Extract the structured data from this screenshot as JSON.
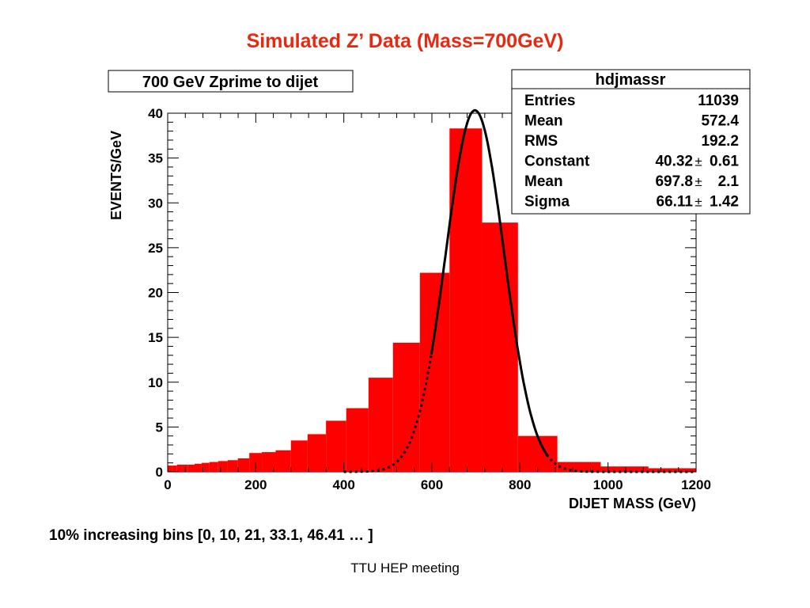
{
  "slide": {
    "title": "Simulated Z’ Data (Mass=700GeV)",
    "note": "10% increasing bins  [0, 10, 21, 33.1, 46.41 … ]",
    "footer": "TTU HEP meeting"
  },
  "chart_data": {
    "type": "bar",
    "title": "700 GeV Zprime to dijet",
    "xlabel": "DIJET MASS (GeV)",
    "ylabel": "EVENTS/GeV",
    "xlim": [
      0,
      1200
    ],
    "ylim": [
      0,
      40
    ],
    "xticks": [
      0,
      200,
      400,
      600,
      800,
      1000,
      1200
    ],
    "yticks": [
      0,
      5,
      10,
      15,
      20,
      25,
      30,
      35,
      40
    ],
    "histogram": {
      "color": "#ff0000",
      "bins": [
        {
          "lo": 0,
          "hi": 10,
          "value": 0.7
        },
        {
          "lo": 10,
          "hi": 21,
          "value": 0.7
        },
        {
          "lo": 21,
          "hi": 33.1,
          "value": 0.8
        },
        {
          "lo": 33.1,
          "hi": 46.41,
          "value": 0.8
        },
        {
          "lo": 46.41,
          "hi": 61.05,
          "value": 0.8
        },
        {
          "lo": 61.05,
          "hi": 77.16,
          "value": 0.9
        },
        {
          "lo": 77.16,
          "hi": 94.87,
          "value": 1.0
        },
        {
          "lo": 94.87,
          "hi": 114.36,
          "value": 1.1
        },
        {
          "lo": 114.36,
          "hi": 135.79,
          "value": 1.2
        },
        {
          "lo": 135.79,
          "hi": 159.37,
          "value": 1.3
        },
        {
          "lo": 159.37,
          "hi": 185.31,
          "value": 1.5
        },
        {
          "lo": 185.31,
          "hi": 213.84,
          "value": 2.1
        },
        {
          "lo": 213.84,
          "hi": 245.22,
          "value": 2.2
        },
        {
          "lo": 245.22,
          "hi": 279.75,
          "value": 2.4
        },
        {
          "lo": 279.75,
          "hi": 317.72,
          "value": 3.5
        },
        {
          "lo": 317.72,
          "hi": 359.5,
          "value": 4.2
        },
        {
          "lo": 359.5,
          "hi": 405.45,
          "value": 5.7
        },
        {
          "lo": 405.45,
          "hi": 456.0,
          "value": 7.1
        },
        {
          "lo": 456.0,
          "hi": 511.6,
          "value": 10.5
        },
        {
          "lo": 511.6,
          "hi": 572.76,
          "value": 14.4
        },
        {
          "lo": 572.76,
          "hi": 640.04,
          "value": 22.2
        },
        {
          "lo": 640.04,
          "hi": 714.04,
          "value": 38.3
        },
        {
          "lo": 714.04,
          "hi": 795.45,
          "value": 27.8
        },
        {
          "lo": 795.45,
          "hi": 885.0,
          "value": 4.0
        },
        {
          "lo": 885.0,
          "hi": 983.5,
          "value": 1.1
        },
        {
          "lo": 983.5,
          "hi": 1091.85,
          "value": 0.6
        },
        {
          "lo": 1091.85,
          "hi": 1211.03,
          "value": 0.4
        }
      ]
    },
    "fit": {
      "type": "gaussian",
      "constant": 40.32,
      "mean": 697.8,
      "sigma": 66.11,
      "color": "#000000"
    },
    "stats_box": {
      "name": "hdjmassr",
      "rows": [
        {
          "label": "Entries",
          "value": "11039"
        },
        {
          "label": "Mean",
          "value": "572.4"
        },
        {
          "label": "RMS",
          "value": "192.2"
        },
        {
          "label": "Constant",
          "value": "40.32",
          "error": "0.61"
        },
        {
          "label": "Mean",
          "value": "697.8",
          "error": "2.1"
        },
        {
          "label": "Sigma",
          "value": "66.11",
          "error": "1.42"
        }
      ]
    },
    "grid": false,
    "legend": "none"
  }
}
